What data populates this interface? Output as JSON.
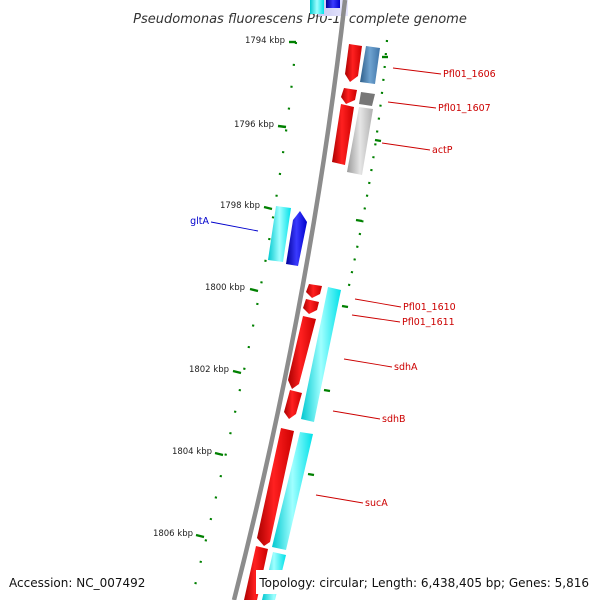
{
  "title": "Pseudomonas fluorescens Pf0-1, complete genome",
  "footer": {
    "accession": "Accession: NC_007492",
    "summary": "Topology: circular; Length: 6,438,405 bp; Genes: 5,816"
  },
  "scale_labels": [
    "1794 kbp",
    "1796 kbp",
    "1798 kbp",
    "1800 kbp",
    "1802 kbp",
    "1804 kbp",
    "1806 kbp"
  ],
  "gene_labels": [
    {
      "text": "Pfl01_1606",
      "color": "#cc0000"
    },
    {
      "text": "Pfl01_1607",
      "color": "#cc0000"
    },
    {
      "text": "actP",
      "color": "#cc0000"
    },
    {
      "text": "gltA",
      "color": "#0000cc"
    },
    {
      "text": "Pfl01_1610",
      "color": "#cc0000"
    },
    {
      "text": "Pfl01_1611",
      "color": "#cc0000"
    },
    {
      "text": "sdhA",
      "color": "#cc0000"
    },
    {
      "text": "sdhB",
      "color": "#cc0000"
    },
    {
      "text": "sucA",
      "color": "#cc0000"
    }
  ],
  "colors": {
    "backbone": "#888888",
    "forward_cds": "#ff0000",
    "reverse_cds": "#0000ee",
    "cyan_track": "#00e5ee",
    "gray_track": "#bbbbbb",
    "steelblue_track": "#4682b4",
    "tick_green": "#008000",
    "label_red": "#cc0000",
    "label_blue": "#0000cc"
  }
}
